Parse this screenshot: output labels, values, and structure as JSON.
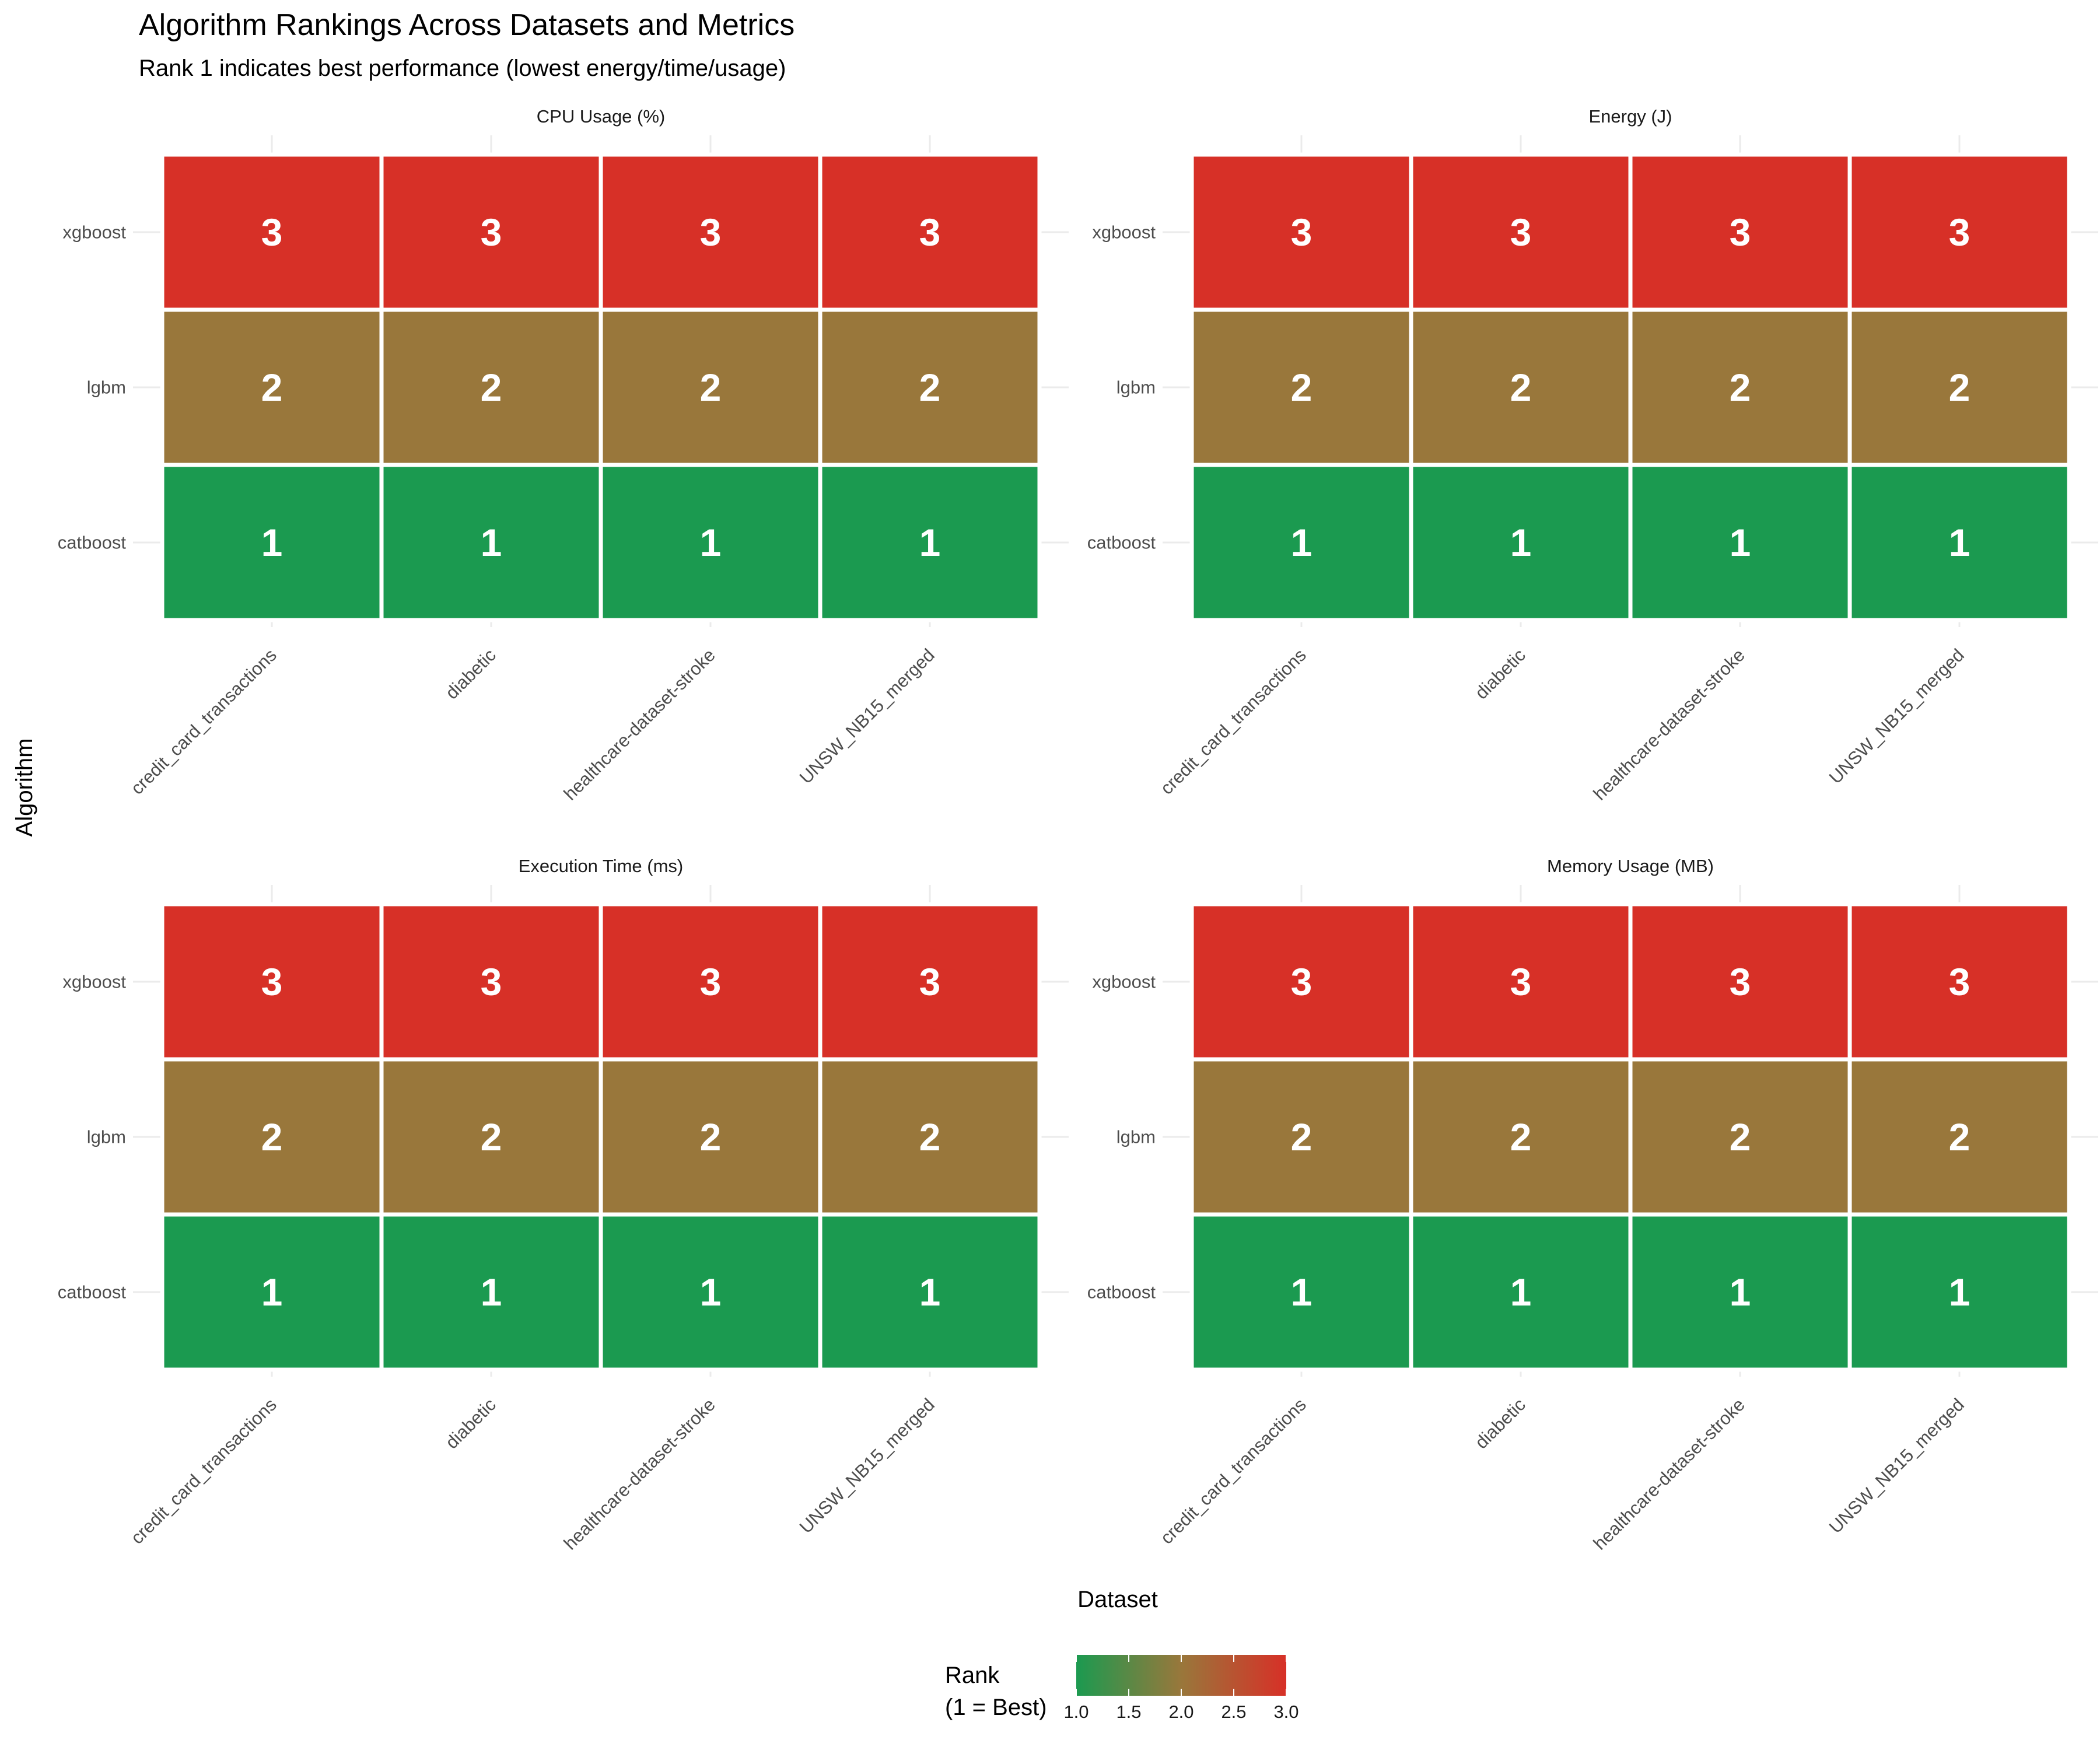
{
  "chart_data": {
    "type": "heatmap",
    "title": "Algorithm Rankings Across Datasets and Metrics",
    "subtitle": "Rank 1 indicates best performance (lowest energy/time/usage)",
    "xlabel": "Dataset",
    "ylabel": "Algorithm",
    "datasets": [
      "credit_card_transactions",
      "diabetic",
      "healthcare-dataset-stroke",
      "UNSW_NB15_merged"
    ],
    "algorithms": [
      "xgboost",
      "lgbm",
      "catboost"
    ],
    "facets": [
      {
        "metric": "CPU Usage (%)",
        "ranks": [
          [
            3,
            3,
            3,
            3
          ],
          [
            2,
            2,
            2,
            2
          ],
          [
            1,
            1,
            1,
            1
          ]
        ]
      },
      {
        "metric": "Energy (J)",
        "ranks": [
          [
            3,
            3,
            3,
            3
          ],
          [
            2,
            2,
            2,
            2
          ],
          [
            1,
            1,
            1,
            1
          ]
        ]
      },
      {
        "metric": "Execution Time (ms)",
        "ranks": [
          [
            3,
            3,
            3,
            3
          ],
          [
            2,
            2,
            2,
            2
          ],
          [
            1,
            1,
            1,
            1
          ]
        ]
      },
      {
        "metric": "Memory Usage (MB)",
        "ranks": [
          [
            3,
            3,
            3,
            3
          ],
          [
            2,
            2,
            2,
            2
          ],
          [
            1,
            1,
            1,
            1
          ]
        ]
      }
    ],
    "legend": {
      "title_line1": "Rank",
      "title_line2": "(1 = Best)",
      "ticks": [
        "1.0",
        "1.5",
        "2.0",
        "2.5",
        "3.0"
      ],
      "min": 1,
      "max": 3,
      "low_color": "#1b9a50",
      "mid_color": "#99773b",
      "high_color": "#d73027",
      "placement": "bottom"
    }
  }
}
